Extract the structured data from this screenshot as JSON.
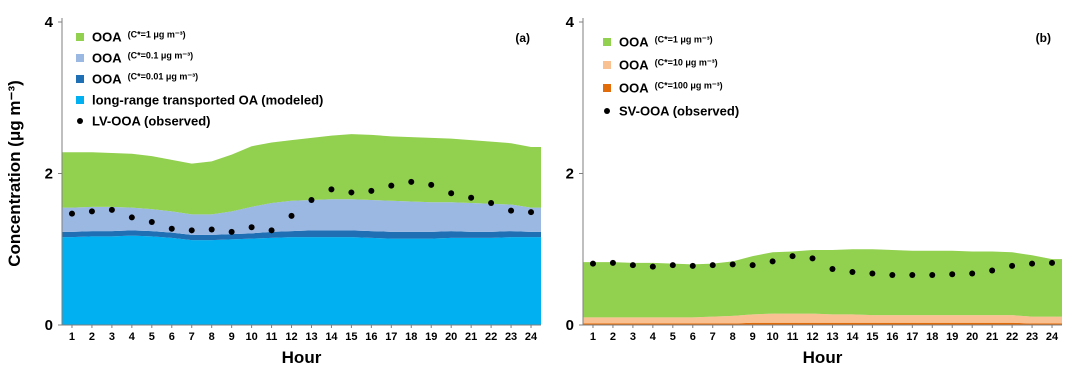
{
  "chart_data": [
    {
      "type": "area",
      "panel_label": "(a)",
      "xlabel": "Hour",
      "ylabel": "Concentration (μg m⁻³)",
      "ylim": [
        0,
        4
      ],
      "yticks": [
        "0",
        "2",
        "4"
      ],
      "x": [
        1,
        2,
        3,
        4,
        5,
        6,
        7,
        8,
        9,
        10,
        11,
        12,
        13,
        14,
        15,
        16,
        17,
        18,
        19,
        20,
        21,
        22,
        23,
        24
      ],
      "legend_position": "top-left",
      "series": [
        {
          "name": "long-range transported OA (modeled)",
          "main": "long-range transported OA (modeled)",
          "sub": "",
          "kind": "area",
          "color": "#00b0f0",
          "values": [
            1.16,
            1.17,
            1.17,
            1.18,
            1.17,
            1.15,
            1.12,
            1.12,
            1.13,
            1.14,
            1.15,
            1.16,
            1.16,
            1.16,
            1.16,
            1.15,
            1.14,
            1.14,
            1.14,
            1.15,
            1.15,
            1.15,
            1.16,
            1.16
          ]
        },
        {
          "name": "OOA (C*=0.01 μg m⁻³)",
          "main": "OOA",
          "sub": "(C*=0.01 μg m⁻³)",
          "kind": "area",
          "color": "#1f6fb5",
          "values": [
            0.07,
            0.07,
            0.07,
            0.07,
            0.07,
            0.07,
            0.07,
            0.07,
            0.07,
            0.07,
            0.08,
            0.08,
            0.09,
            0.09,
            0.09,
            0.09,
            0.09,
            0.09,
            0.09,
            0.09,
            0.08,
            0.08,
            0.08,
            0.07
          ]
        },
        {
          "name": "OOA (C*=0.1 μg m⁻³)",
          "main": "OOA",
          "sub": "(C*=0.1 μg m⁻³)",
          "kind": "area",
          "color": "#9bb8e3",
          "values": [
            0.32,
            0.32,
            0.32,
            0.3,
            0.29,
            0.28,
            0.27,
            0.27,
            0.3,
            0.35,
            0.38,
            0.4,
            0.4,
            0.41,
            0.41,
            0.41,
            0.41,
            0.4,
            0.39,
            0.38,
            0.38,
            0.37,
            0.35,
            0.32
          ]
        },
        {
          "name": "OOA (C*=1 μg m⁻³)",
          "main": "OOA",
          "sub": "(C*=1 μg m⁻³)",
          "kind": "area",
          "color": "#92d050",
          "values": [
            0.73,
            0.72,
            0.71,
            0.71,
            0.7,
            0.68,
            0.67,
            0.7,
            0.75,
            0.8,
            0.8,
            0.8,
            0.82,
            0.84,
            0.86,
            0.86,
            0.85,
            0.85,
            0.85,
            0.84,
            0.83,
            0.82,
            0.81,
            0.8
          ]
        },
        {
          "name": "LV-OOA (observed)",
          "main": "LV-OOA (observed)",
          "sub": "",
          "kind": "points",
          "color": "#000000",
          "values": [
            1.47,
            1.5,
            1.52,
            1.42,
            1.36,
            1.27,
            1.25,
            1.26,
            1.23,
            1.29,
            1.25,
            1.44,
            1.65,
            1.79,
            1.75,
            1.77,
            1.84,
            1.89,
            1.85,
            1.74,
            1.68,
            1.61,
            1.51,
            1.49
          ]
        }
      ],
      "legend_order": [
        3,
        2,
        1,
        0,
        4
      ]
    },
    {
      "type": "area",
      "panel_label": "(b)",
      "xlabel": "Hour",
      "ylabel": "",
      "ylim": [
        0,
        4
      ],
      "yticks": [
        "0",
        "2",
        "4"
      ],
      "x": [
        1,
        2,
        3,
        4,
        5,
        6,
        7,
        8,
        9,
        10,
        11,
        12,
        13,
        14,
        15,
        16,
        17,
        18,
        19,
        20,
        21,
        22,
        23,
        24
      ],
      "legend_position": "top-left",
      "series": [
        {
          "name": "OOA (C*=100 μg m⁻³)",
          "main": "OOA",
          "sub": "(C*=100 μg m⁻³)",
          "kind": "area",
          "color": "#e36c0a",
          "values": [
            0.02,
            0.02,
            0.02,
            0.02,
            0.02,
            0.02,
            0.02,
            0.02,
            0.03,
            0.03,
            0.03,
            0.03,
            0.03,
            0.03,
            0.03,
            0.03,
            0.03,
            0.03,
            0.03,
            0.03,
            0.03,
            0.03,
            0.02,
            0.02
          ]
        },
        {
          "name": "OOA (C*=10 μg m⁻³)",
          "main": "OOA",
          "sub": "(C*=10 μg m⁻³)",
          "kind": "area",
          "color": "#f9c191",
          "values": [
            0.08,
            0.08,
            0.08,
            0.08,
            0.08,
            0.08,
            0.09,
            0.1,
            0.11,
            0.12,
            0.12,
            0.12,
            0.11,
            0.11,
            0.1,
            0.1,
            0.1,
            0.1,
            0.1,
            0.1,
            0.1,
            0.1,
            0.09,
            0.09
          ]
        },
        {
          "name": "OOA (C*=1 μg m⁻³)",
          "main": "OOA",
          "sub": "(C*=1 μg m⁻³)",
          "kind": "area",
          "color": "#92d050",
          "values": [
            0.73,
            0.73,
            0.72,
            0.72,
            0.71,
            0.7,
            0.7,
            0.72,
            0.77,
            0.81,
            0.82,
            0.84,
            0.85,
            0.86,
            0.87,
            0.86,
            0.85,
            0.85,
            0.85,
            0.84,
            0.84,
            0.83,
            0.81,
            0.76
          ]
        },
        {
          "name": "SV-OOA (observed)",
          "main": "SV-OOA (observed)",
          "sub": "",
          "kind": "points",
          "color": "#000000",
          "values": [
            0.81,
            0.82,
            0.79,
            0.77,
            0.79,
            0.78,
            0.79,
            0.8,
            0.79,
            0.84,
            0.91,
            0.88,
            0.74,
            0.7,
            0.68,
            0.66,
            0.66,
            0.66,
            0.67,
            0.68,
            0.72,
            0.78,
            0.81,
            0.82
          ]
        }
      ],
      "legend_order": [
        2,
        1,
        0,
        3
      ]
    }
  ]
}
